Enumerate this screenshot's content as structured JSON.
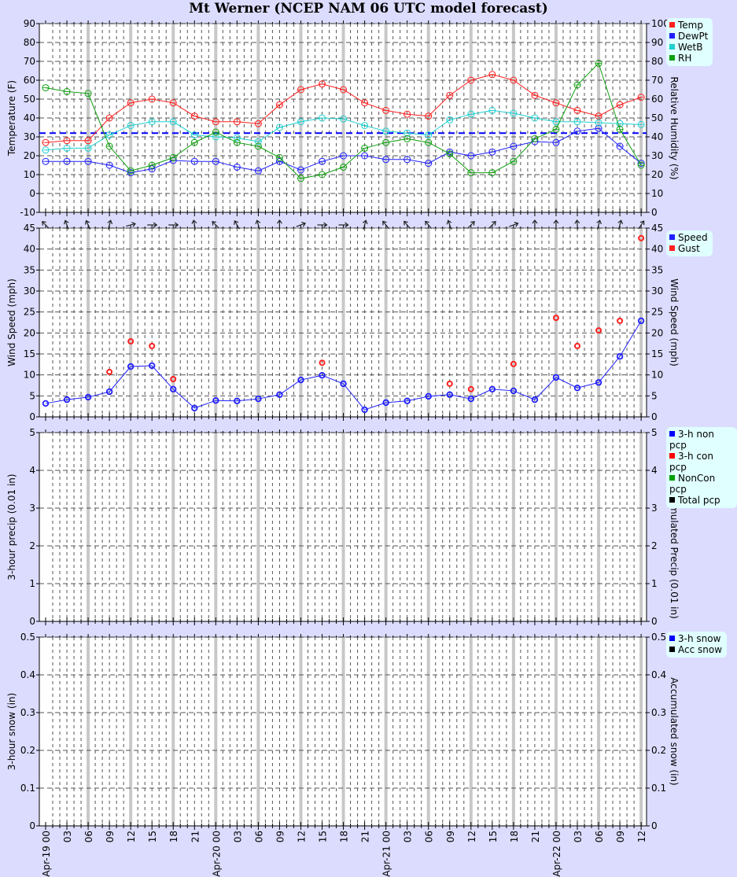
{
  "title": "Mt Werner (NCEP NAM 06 UTC model forecast)",
  "background_color": "#dcdcff",
  "time_labels": [
    "Apr-19 00",
    "03",
    "06",
    "09",
    "12",
    "15",
    "18",
    "21",
    "Apr-20 00",
    "03",
    "06",
    "09",
    "12",
    "15",
    "18",
    "21",
    "Apr-21 00",
    "03",
    "06",
    "09",
    "12",
    "15",
    "18",
    "21",
    "Apr-22 00",
    "03",
    "06",
    "09",
    "12"
  ],
  "chart_data": [
    {
      "type": "line",
      "ylabel": "Temperature (F)",
      "ylabel_right": "Relative Humidity (%)",
      "ylim": [
        -10,
        90
      ],
      "ylim_right": [
        0,
        100
      ],
      "yticks": [
        -10,
        0,
        10,
        20,
        30,
        40,
        50,
        60,
        70,
        80,
        90
      ],
      "yticks_right": [
        0,
        10,
        20,
        30,
        40,
        50,
        60,
        70,
        80,
        90,
        100
      ],
      "grid": true,
      "legend_position": "top-right-outside",
      "freezing_line": {
        "value": 32,
        "color": "#0000ff",
        "style": "dashed"
      },
      "series": [
        {
          "name": "Temp",
          "color": "#ff2020",
          "axis": "left",
          "values": [
            27,
            28,
            28,
            40,
            48,
            50,
            48,
            41,
            38,
            38,
            37,
            47,
            55,
            58,
            55,
            48,
            44,
            42,
            41,
            52,
            60,
            63,
            60,
            52,
            48,
            44,
            41,
            47,
            51
          ]
        },
        {
          "name": "DewPt",
          "color": "#2020ff",
          "axis": "left",
          "values": [
            17,
            17,
            17,
            15,
            11,
            13,
            17.5,
            17,
            17,
            14,
            12,
            17,
            12.5,
            17,
            20,
            20,
            18,
            18,
            16,
            22,
            20,
            22,
            25,
            27.5,
            27,
            33,
            34.5,
            25,
            16
          ]
        },
        {
          "name": "WetB",
          "color": "#20d0d0",
          "axis": "left",
          "values": [
            23,
            24,
            24,
            31,
            36,
            38,
            38,
            31,
            30,
            29.5,
            27.5,
            35,
            38,
            40,
            39.5,
            36,
            33,
            32,
            31,
            39,
            42,
            44,
            42.5,
            40,
            38,
            38,
            37.5,
            37,
            36.5
          ]
        },
        {
          "name": "RH",
          "color": "#10a010",
          "axis": "right",
          "values": [
            66,
            64,
            63,
            35,
            22,
            25,
            29,
            37,
            42.5,
            37,
            35,
            29,
            18,
            20,
            24,
            34,
            37,
            39,
            37,
            31,
            21,
            21,
            27,
            39,
            44,
            67.5,
            79,
            44,
            25
          ]
        }
      ]
    },
    {
      "type": "line",
      "ylabel": "Wind Speed (mph)",
      "ylabel_right": "Wind Speed (mph)",
      "ylim": [
        0,
        45
      ],
      "ylim_right": [
        0,
        45
      ],
      "yticks": [
        0,
        5,
        10,
        15,
        20,
        25,
        30,
        35,
        40,
        45
      ],
      "yticks_right": [
        0,
        5,
        10,
        15,
        20,
        25,
        30,
        35,
        40,
        45
      ],
      "grid": true,
      "legend_position": "top-right-outside",
      "wind_arrow_bearing_deg": [
        315,
        340,
        335,
        15,
        75,
        90,
        90,
        350,
        315,
        330,
        345,
        0,
        70,
        90,
        90,
        15,
        320,
        320,
        320,
        340,
        45,
        45,
        70,
        0,
        0,
        355,
        15,
        15,
        35
      ],
      "series": [
        {
          "name": "Speed",
          "color": "#2020ff",
          "style": "line",
          "values": [
            3.2,
            4.1,
            4.7,
            6,
            12,
            12.2,
            6.6,
            2.1,
            3.9,
            3.8,
            4.3,
            5.3,
            8.8,
            9.9,
            7.9,
            1.7,
            3.4,
            3.8,
            4.9,
            5.3,
            4.3,
            6.6,
            6.2,
            4.1,
            9.4,
            6.9,
            8.2,
            14.4,
            22.9
          ]
        },
        {
          "name": "Gust",
          "color": "#ff2020",
          "style": "points",
          "values": [
            null,
            null,
            null,
            10.7,
            18,
            16.9,
            9,
            null,
            null,
            null,
            null,
            null,
            null,
            12.9,
            null,
            null,
            null,
            null,
            null,
            7.9,
            6.6,
            null,
            12.6,
            null,
            23.6,
            16.9,
            20.6,
            22.9,
            42.6
          ]
        }
      ]
    },
    {
      "type": "bar",
      "ylabel": "3-hour precip (0.01 in)",
      "ylabel_right": "Accumulated Precip (0.01 in)",
      "ylim": [
        0,
        5
      ],
      "ylim_right": [
        0,
        5
      ],
      "yticks": [
        0,
        1,
        2,
        3,
        4,
        5
      ],
      "yticks_right": [
        0,
        1,
        2,
        3,
        4,
        5
      ],
      "grid": true,
      "legend_position": "top-right-outside",
      "series": [
        {
          "name": "3-h non pcp",
          "color": "#0000ff",
          "values": []
        },
        {
          "name": "3-h con pcp",
          "color": "#ff0000",
          "values": []
        },
        {
          "name": "NonCon pcp",
          "color": "#00a000",
          "values": []
        },
        {
          "name": "Total pcp",
          "color": "#000000",
          "values": []
        }
      ]
    },
    {
      "type": "bar",
      "ylabel": "3-hour snow (in)",
      "ylabel_right": "Accumulated snow (in)",
      "ylim": [
        0,
        0.5
      ],
      "ylim_right": [
        0,
        0.5
      ],
      "yticks": [
        "0",
        "0.1",
        "0.2",
        "0.3",
        "0.4",
        "0.5"
      ],
      "yticks_right": [
        "0",
        "0.1",
        "0.2",
        "0.3",
        "0.4",
        "0.5"
      ],
      "grid": true,
      "legend_position": "top-right-outside",
      "series": [
        {
          "name": "3-h snow",
          "color": "#0000ff",
          "values": []
        },
        {
          "name": "Acc snow",
          "color": "#000000",
          "values": []
        }
      ]
    }
  ]
}
